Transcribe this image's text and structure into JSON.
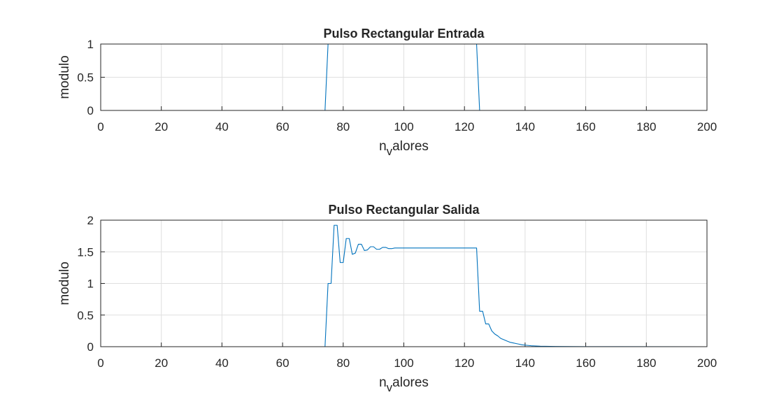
{
  "chart_data": [
    {
      "type": "line",
      "title": "Pulso Rectangular Entrada",
      "xlabel_main": "n",
      "xlabel_sub": "v",
      "xlabel_rest": "alores",
      "ylabel": "modulo",
      "xlim": [
        0,
        200
      ],
      "ylim": [
        0,
        1
      ],
      "xticks": [
        "0",
        "20",
        "40",
        "60",
        "80",
        "100",
        "120",
        "140",
        "160",
        "180",
        "200"
      ],
      "yticks": [
        "0",
        "0.5",
        "1"
      ],
      "grid": true,
      "line_color": "#0072bd",
      "series": [
        {
          "x": [
            0,
            74,
            75,
            124,
            125,
            199
          ],
          "y": [
            0,
            0,
            1,
            1,
            0,
            0
          ]
        }
      ]
    },
    {
      "type": "line",
      "title": "Pulso Rectangular Salida",
      "xlabel_main": "n",
      "xlabel_sub": "v",
      "xlabel_rest": "alores",
      "ylabel": "modulo",
      "xlim": [
        0,
        200
      ],
      "ylim": [
        0,
        2
      ],
      "xticks": [
        "0",
        "20",
        "40",
        "60",
        "80",
        "100",
        "120",
        "140",
        "160",
        "180",
        "200"
      ],
      "yticks": [
        "0",
        "0.5",
        "1",
        "1.5",
        "2"
      ],
      "grid": true,
      "line_color": "#0072bd",
      "series": [
        {
          "x": [
            0,
            74,
            75,
            76,
            77,
            78,
            79,
            80,
            81,
            82,
            83,
            84,
            85,
            86,
            87,
            88,
            89,
            90,
            91,
            92,
            93,
            94,
            95,
            96,
            97,
            98,
            100,
            124,
            125,
            126,
            127,
            128,
            129,
            130,
            131,
            132,
            133,
            134,
            135,
            136,
            137,
            138,
            139,
            140,
            142,
            145,
            150,
            155,
            160,
            199
          ],
          "y": [
            0,
            0,
            1.0,
            1.0,
            1.92,
            1.92,
            1.33,
            1.33,
            1.71,
            1.71,
            1.46,
            1.48,
            1.62,
            1.62,
            1.52,
            1.53,
            1.58,
            1.58,
            1.54,
            1.54,
            1.57,
            1.57,
            1.55,
            1.55,
            1.56,
            1.56,
            1.56,
            1.56,
            0.56,
            0.56,
            0.36,
            0.36,
            0.25,
            0.2,
            0.17,
            0.13,
            0.11,
            0.09,
            0.07,
            0.06,
            0.05,
            0.04,
            0.03,
            0.025,
            0.015,
            0.008,
            0.004,
            0.002,
            0.001,
            0
          ]
        }
      ]
    }
  ]
}
